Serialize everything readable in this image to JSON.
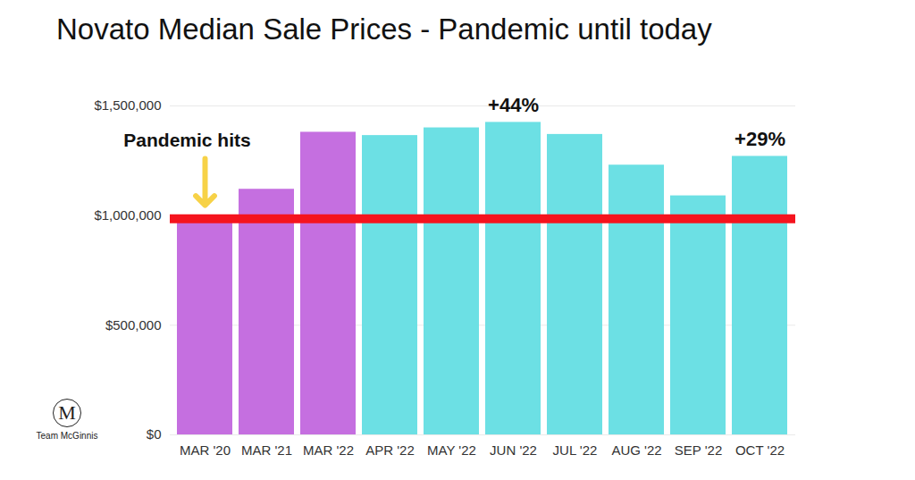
{
  "chart_data": {
    "type": "bar",
    "title": "Novato Median Sale Prices - Pandemic until today",
    "categories": [
      "MAR '20",
      "MAR '21",
      "MAR '22",
      "APR '22",
      "MAY '22",
      "JUN '22",
      "JUL '22",
      "AUG '22",
      "SEP '22",
      "OCT '22"
    ],
    "values": [
      990000,
      1120000,
      1380000,
      1365000,
      1400000,
      1425000,
      1370000,
      1230000,
      1090000,
      1270000
    ],
    "colors": [
      "#c56fe0",
      "#c56fe0",
      "#c56fe0",
      "#6ce0e4",
      "#6ce0e4",
      "#6ce0e4",
      "#6ce0e4",
      "#6ce0e4",
      "#6ce0e4",
      "#6ce0e4"
    ],
    "ylim": [
      0,
      1500000
    ],
    "yticks": [
      {
        "value": 0,
        "label": "$0"
      },
      {
        "value": 500000,
        "label": "$500,000"
      },
      {
        "value": 1000000,
        "label": "$1,000,000"
      },
      {
        "value": 1500000,
        "label": "$1,500,000"
      }
    ],
    "grid": true,
    "reference_line": 985000,
    "event_label": {
      "text": "Pandemic hits",
      "category": "MAR '20"
    },
    "change_labels": [
      {
        "text": "+44%",
        "category": "JUN '22"
      },
      {
        "text": "+29%",
        "category": "OCT '22"
      }
    ],
    "logo": {
      "mark": "M",
      "text": "Team McGinnis"
    }
  }
}
